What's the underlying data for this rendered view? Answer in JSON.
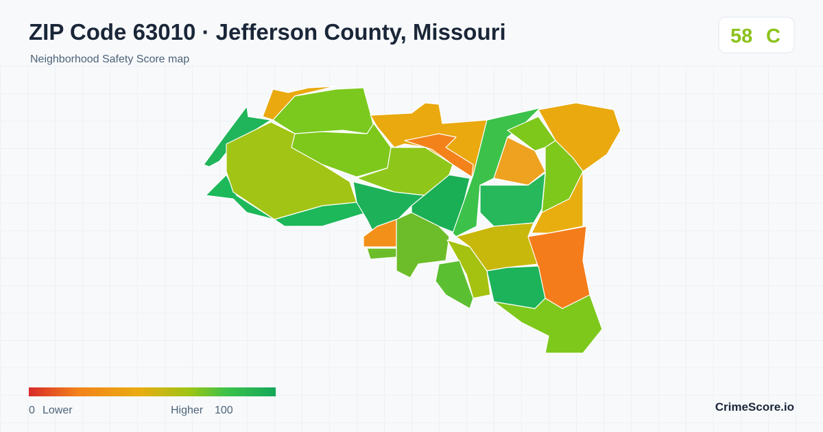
{
  "header": {
    "title": "ZIP Code 63010 · Jefferson County, Missouri",
    "subtitle": "Neighborhood Safety Score map"
  },
  "score": {
    "value": "58",
    "grade": "C"
  },
  "legend": {
    "min": "0",
    "min_label": "Lower",
    "max_label": "Higher",
    "max": "100"
  },
  "brand": "CrimeScore.io"
}
